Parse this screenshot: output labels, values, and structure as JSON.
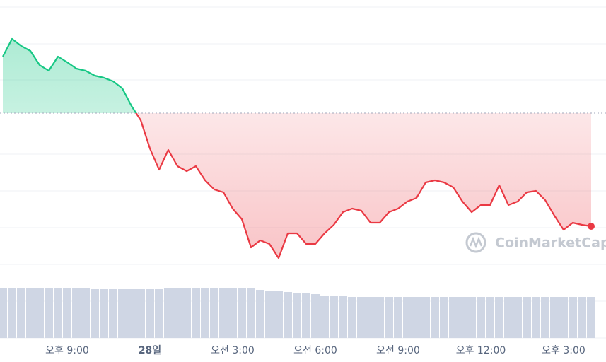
{
  "chart_data": [
    {
      "type": "line",
      "x": [
        0,
        1,
        2,
        3,
        4,
        5,
        6,
        7,
        8,
        9,
        10,
        11,
        12,
        13,
        14,
        15,
        16,
        17,
        18,
        19,
        20,
        21,
        22,
        23,
        24,
        25,
        26,
        27,
        28,
        29,
        30,
        31,
        32,
        33,
        34,
        35,
        36,
        37,
        38,
        39,
        40,
        41,
        42,
        43,
        44,
        45,
        46,
        47,
        48,
        49,
        50,
        51,
        52,
        53,
        54,
        55,
        56,
        57,
        58,
        59,
        60,
        61,
        62,
        63,
        64
      ],
      "series": [
        {
          "values": [
            80,
            86.25,
            83.75,
            82,
            77,
            75,
            80,
            78,
            75.75,
            75,
            73.25,
            72.5,
            71.25,
            68.75,
            62.5,
            57.5,
            47.5,
            40,
            47,
            41.25,
            39.5,
            41.25,
            36.25,
            33,
            32,
            26.25,
            22.5,
            12.5,
            15,
            13.75,
            8.75,
            17.5,
            17.5,
            13.75,
            13.75,
            17.5,
            20.5,
            25,
            26.25,
            25.5,
            21.25,
            21.25,
            25,
            26.25,
            28.75,
            30,
            35.5,
            36.25,
            35.5,
            33.75,
            28.75,
            25,
            27.5,
            27.5,
            34.5,
            27.5,
            28.75,
            32,
            32.5,
            29.25,
            23.75,
            18.75,
            21.25,
            20.5,
            20
          ],
          "color_up": "#16c784",
          "color_down": "#ea3943"
        }
      ],
      "baseline": 60,
      "xlim": [
        0,
        64
      ],
      "ylim": [
        0,
        100
      ],
      "xticks": [
        {
          "value": 7,
          "label": "오후 9:00"
        },
        {
          "value": 16,
          "label": "28일"
        },
        {
          "value": 25,
          "label": "오전 3:00"
        },
        {
          "value": 34,
          "label": "오전 6:00"
        },
        {
          "value": 43,
          "label": "오전 9:00"
        },
        {
          "value": 52,
          "label": "오후 12:00"
        },
        {
          "value": 61,
          "label": "오후 3:00"
        }
      ],
      "watermark": "CoinMarketCap"
    },
    {
      "type": "bar",
      "x": [
        0,
        1,
        2,
        3,
        4,
        5,
        6,
        7,
        8,
        9,
        10,
        11,
        12,
        13,
        14,
        15,
        16,
        17,
        18,
        19,
        20,
        21,
        22,
        23,
        24,
        25,
        26,
        27,
        28,
        29,
        30,
        31,
        32,
        33,
        34,
        35,
        36,
        37,
        38,
        39,
        40,
        41,
        42,
        43,
        44,
        45,
        46,
        47,
        48,
        49,
        50,
        51,
        52,
        53,
        54,
        55,
        56,
        57,
        58,
        59,
        60,
        61,
        62,
        63,
        64
      ],
      "values": [
        70,
        70,
        71,
        70,
        70,
        70,
        70,
        70,
        70,
        70,
        69,
        69,
        69,
        69,
        69,
        69,
        69,
        69,
        70,
        70,
        70,
        70,
        70,
        70,
        70,
        71,
        71,
        70,
        68,
        67,
        66,
        65,
        64,
        63,
        62,
        60,
        59,
        59,
        58,
        58,
        58,
        58,
        58,
        58,
        58,
        58,
        58,
        58,
        58,
        58,
        58,
        58,
        58,
        58,
        58,
        58,
        58,
        58,
        58,
        58,
        58,
        58,
        58,
        58,
        58
      ],
      "color": "#cfd6e4",
      "ylim": [
        0,
        100
      ]
    }
  ]
}
